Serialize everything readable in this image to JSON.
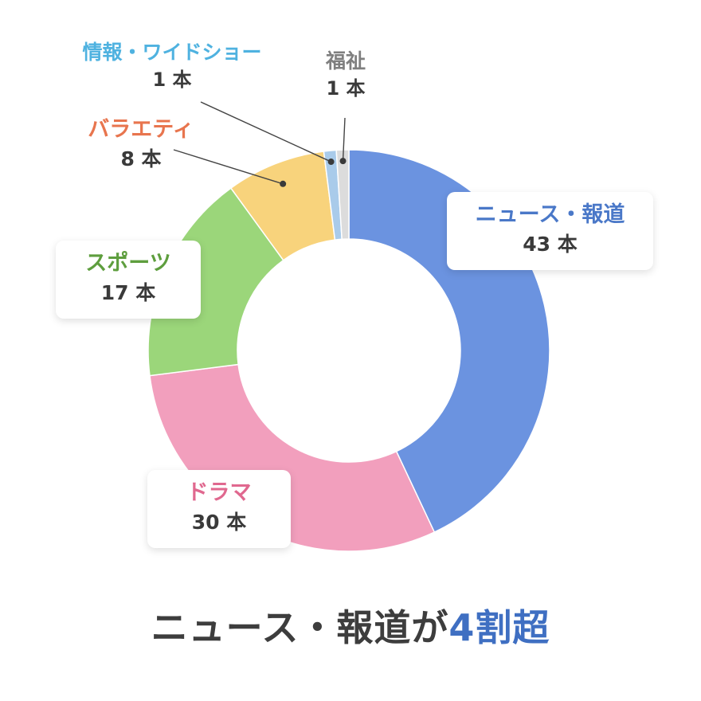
{
  "chart_data": {
    "type": "pie",
    "donut": true,
    "unit": "本",
    "categories": [
      "ニュース・報道",
      "ドラマ",
      "スポーツ",
      "バラエティ",
      "情報・ワイドショー",
      "福祉"
    ],
    "values": [
      43,
      30,
      17,
      8,
      1,
      1
    ],
    "count_labels": [
      "43 本",
      "30 本",
      "17 本",
      "8 本",
      "1 本",
      "1 本"
    ],
    "colors": [
      "#6b93e0",
      "#f29fbd",
      "#9bd67a",
      "#f8d37c",
      "#a9cbea",
      "#dcdcdc"
    ],
    "label_colors": [
      "#4a78c8",
      "#e0688f",
      "#5e9e3e",
      "#e8754e",
      "#4fb2e0",
      "#7f7f7f"
    ],
    "title": "",
    "xlabel": "",
    "ylabel": ""
  },
  "headline": {
    "main": "ニュース・報道が",
    "accent": "4割超"
  }
}
